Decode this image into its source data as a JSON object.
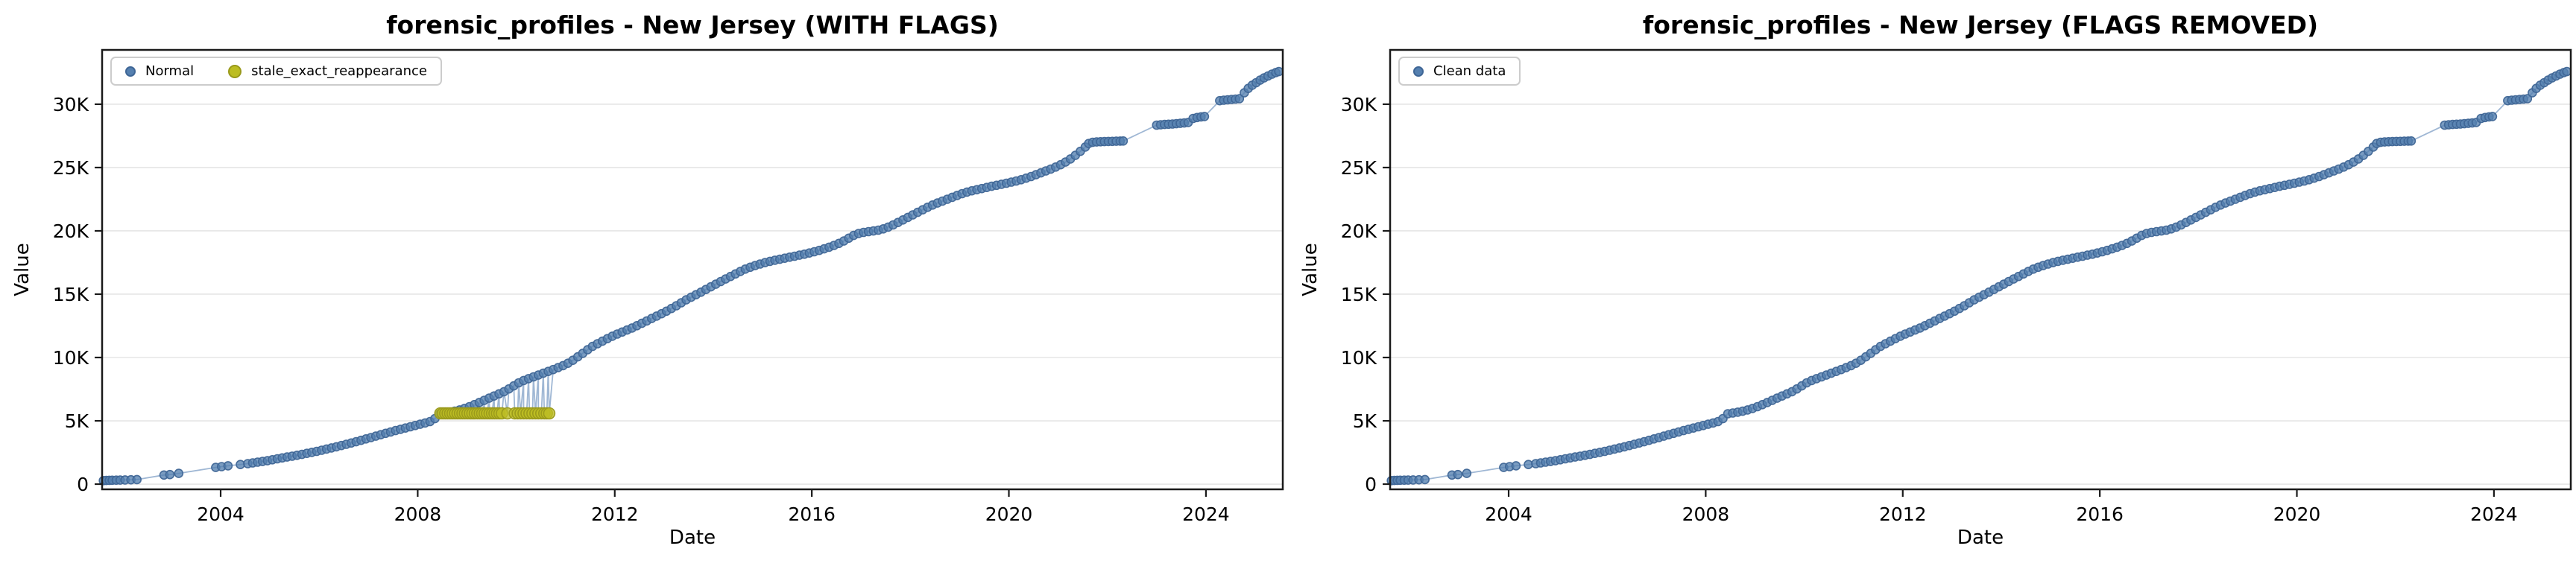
{
  "figure": {
    "background": "#ffffff"
  },
  "colors": {
    "normal_fill": "#5580b0",
    "normal_edge": "#3f6696",
    "stale_fill": "#bcbd22",
    "stale_edge": "#99991b",
    "line": "#7f9fc6",
    "grid": "#e5e5e5",
    "axis": "#1a1a1a",
    "text": "#000000"
  },
  "chart_data": [
    {
      "type": "scatter",
      "title": "forensic_profiles - New Jersey (WITH FLAGS)",
      "xlabel": "Date",
      "ylabel": "Value",
      "xlim": [
        2001.594,
        2025.56
      ],
      "ylim": [
        -410,
        34290
      ],
      "x_ticks": [
        {
          "value": 2004,
          "label": "2004"
        },
        {
          "value": 2008,
          "label": "2008"
        },
        {
          "value": 2012,
          "label": "2012"
        },
        {
          "value": 2016,
          "label": "2016"
        },
        {
          "value": 2020,
          "label": "2020"
        },
        {
          "value": 2024,
          "label": "2024"
        }
      ],
      "y_ticks": [
        {
          "value": 0,
          "label": "0"
        },
        {
          "value": 5000,
          "label": "5K"
        },
        {
          "value": 10000,
          "label": "10K"
        },
        {
          "value": 15000,
          "label": "15K"
        },
        {
          "value": 20000,
          "label": "20K"
        },
        {
          "value": 25000,
          "label": "25K"
        },
        {
          "value": 30000,
          "label": "30K"
        }
      ],
      "grid": "horizontal",
      "legend_position": "upper left",
      "legend": {
        "items": [
          {
            "series": "normal",
            "label": "Normal"
          },
          {
            "series": "stale",
            "label": "stale_exact_reappearance"
          }
        ]
      },
      "line_series": [
        "normal",
        "stale"
      ],
      "point_series": [
        {
          "series": "normal",
          "radius": 5.5
        },
        {
          "series": "stale",
          "radius": 7.5
        }
      ]
    },
    {
      "type": "scatter",
      "title": "forensic_profiles - New Jersey (FLAGS REMOVED)",
      "xlabel": "Date",
      "ylabel": "Value",
      "xlim": [
        2001.594,
        2025.56
      ],
      "ylim": [
        -410,
        34290
      ],
      "x_ticks": [
        {
          "value": 2004,
          "label": "2004"
        },
        {
          "value": 2008,
          "label": "2008"
        },
        {
          "value": 2012,
          "label": "2012"
        },
        {
          "value": 2016,
          "label": "2016"
        },
        {
          "value": 2020,
          "label": "2020"
        },
        {
          "value": 2024,
          "label": "2024"
        }
      ],
      "y_ticks": [
        {
          "value": 0,
          "label": "0"
        },
        {
          "value": 5000,
          "label": "5K"
        },
        {
          "value": 10000,
          "label": "10K"
        },
        {
          "value": 15000,
          "label": "15K"
        },
        {
          "value": 20000,
          "label": "20K"
        },
        {
          "value": 25000,
          "label": "25K"
        },
        {
          "value": 30000,
          "label": "30K"
        }
      ],
      "grid": "horizontal",
      "legend_position": "upper left",
      "legend": {
        "items": [
          {
            "series": "normal",
            "label": "Clean data"
          }
        ]
      },
      "line_series": [
        "normal"
      ],
      "point_series": [
        {
          "series": "normal",
          "radius": 5.5
        }
      ]
    }
  ],
  "series": {
    "normal": [
      [
        2001.62,
        280
      ],
      [
        2001.68,
        292
      ],
      [
        2001.74,
        300
      ],
      [
        2001.8,
        306
      ],
      [
        2001.88,
        312
      ],
      [
        2001.96,
        318
      ],
      [
        2002.06,
        330
      ],
      [
        2002.18,
        345
      ],
      [
        2002.3,
        360
      ],
      [
        2002.85,
        720
      ],
      [
        2002.97,
        755
      ],
      [
        2003.15,
        850
      ],
      [
        2003.9,
        1320
      ],
      [
        2004.02,
        1385
      ],
      [
        2004.15,
        1450
      ],
      [
        2004.4,
        1550
      ],
      [
        2004.55,
        1620
      ],
      [
        2004.65,
        1680
      ],
      [
        2004.75,
        1735
      ],
      [
        2004.85,
        1790
      ],
      [
        2004.95,
        1850
      ],
      [
        2005.05,
        1925
      ],
      [
        2005.15,
        2000
      ],
      [
        2005.25,
        2070
      ],
      [
        2005.35,
        2140
      ],
      [
        2005.45,
        2210
      ],
      [
        2005.55,
        2280
      ],
      [
        2005.65,
        2350
      ],
      [
        2005.75,
        2430
      ],
      [
        2005.85,
        2510
      ],
      [
        2005.95,
        2590
      ],
      [
        2006.05,
        2680
      ],
      [
        2006.15,
        2770
      ],
      [
        2006.25,
        2860
      ],
      [
        2006.35,
        2950
      ],
      [
        2006.45,
        3050
      ],
      [
        2006.55,
        3150
      ],
      [
        2006.65,
        3250
      ],
      [
        2006.75,
        3350
      ],
      [
        2006.85,
        3460
      ],
      [
        2006.95,
        3570
      ],
      [
        2007.05,
        3680
      ],
      [
        2007.15,
        3790
      ],
      [
        2007.25,
        3900
      ],
      [
        2007.35,
        4010
      ],
      [
        2007.45,
        4120
      ],
      [
        2007.55,
        4230
      ],
      [
        2007.65,
        4330
      ],
      [
        2007.75,
        4430
      ],
      [
        2007.85,
        4530
      ],
      [
        2007.95,
        4630
      ],
      [
        2008.05,
        4730
      ],
      [
        2008.15,
        4830
      ],
      [
        2008.25,
        4940
      ],
      [
        2008.35,
        5180
      ],
      [
        2008.45,
        5560
      ],
      [
        2008.55,
        5620
      ],
      [
        2008.65,
        5685
      ],
      [
        2008.75,
        5760
      ],
      [
        2008.85,
        5860
      ],
      [
        2008.95,
        5980
      ],
      [
        2009.05,
        6120
      ],
      [
        2009.15,
        6280
      ],
      [
        2009.25,
        6450
      ],
      [
        2009.35,
        6620
      ],
      [
        2009.45,
        6790
      ],
      [
        2009.55,
        6960
      ],
      [
        2009.65,
        7130
      ],
      [
        2009.75,
        7300
      ],
      [
        2009.85,
        7520
      ],
      [
        2009.95,
        7760
      ],
      [
        2010.05,
        8000
      ],
      [
        2010.15,
        8180
      ],
      [
        2010.25,
        8330
      ],
      [
        2010.35,
        8470
      ],
      [
        2010.45,
        8610
      ],
      [
        2010.55,
        8760
      ],
      [
        2010.65,
        8900
      ],
      [
        2010.75,
        9050
      ],
      [
        2010.85,
        9200
      ],
      [
        2010.95,
        9360
      ],
      [
        2011.05,
        9550
      ],
      [
        2011.15,
        9780
      ],
      [
        2011.25,
        10050
      ],
      [
        2011.35,
        10330
      ],
      [
        2011.45,
        10610
      ],
      [
        2011.55,
        10880
      ],
      [
        2011.65,
        11090
      ],
      [
        2011.75,
        11290
      ],
      [
        2011.85,
        11490
      ],
      [
        2011.95,
        11680
      ],
      [
        2012.05,
        11850
      ],
      [
        2012.15,
        12010
      ],
      [
        2012.25,
        12170
      ],
      [
        2012.35,
        12330
      ],
      [
        2012.45,
        12510
      ],
      [
        2012.55,
        12700
      ],
      [
        2012.65,
        12890
      ],
      [
        2012.75,
        13080
      ],
      [
        2012.85,
        13270
      ],
      [
        2012.95,
        13460
      ],
      [
        2013.05,
        13660
      ],
      [
        2013.15,
        13870
      ],
      [
        2013.25,
        14090
      ],
      [
        2013.35,
        14320
      ],
      [
        2013.45,
        14550
      ],
      [
        2013.55,
        14760
      ],
      [
        2013.65,
        14960
      ],
      [
        2013.75,
        15160
      ],
      [
        2013.85,
        15370
      ],
      [
        2013.95,
        15580
      ],
      [
        2014.05,
        15790
      ],
      [
        2014.15,
        16000
      ],
      [
        2014.25,
        16200
      ],
      [
        2014.35,
        16400
      ],
      [
        2014.45,
        16600
      ],
      [
        2014.55,
        16800
      ],
      [
        2014.65,
        16980
      ],
      [
        2014.75,
        17130
      ],
      [
        2014.85,
        17260
      ],
      [
        2014.95,
        17380
      ],
      [
        2015.05,
        17490
      ],
      [
        2015.15,
        17590
      ],
      [
        2015.25,
        17680
      ],
      [
        2015.35,
        17760
      ],
      [
        2015.45,
        17840
      ],
      [
        2015.55,
        17920
      ],
      [
        2015.65,
        18000
      ],
      [
        2015.75,
        18080
      ],
      [
        2015.85,
        18160
      ],
      [
        2015.95,
        18250
      ],
      [
        2016.05,
        18350
      ],
      [
        2016.15,
        18460
      ],
      [
        2016.25,
        18580
      ],
      [
        2016.35,
        18710
      ],
      [
        2016.45,
        18850
      ],
      [
        2016.55,
        19010
      ],
      [
        2016.65,
        19200
      ],
      [
        2016.75,
        19420
      ],
      [
        2016.85,
        19640
      ],
      [
        2016.95,
        19790
      ],
      [
        2017.05,
        19880
      ],
      [
        2017.15,
        19940
      ],
      [
        2017.25,
        19990
      ],
      [
        2017.35,
        20060
      ],
      [
        2017.45,
        20160
      ],
      [
        2017.55,
        20300
      ],
      [
        2017.65,
        20470
      ],
      [
        2017.75,
        20660
      ],
      [
        2017.85,
        20860
      ],
      [
        2017.95,
        21060
      ],
      [
        2018.05,
        21260
      ],
      [
        2018.15,
        21460
      ],
      [
        2018.25,
        21660
      ],
      [
        2018.35,
        21860
      ],
      [
        2018.45,
        22040
      ],
      [
        2018.55,
        22200
      ],
      [
        2018.65,
        22350
      ],
      [
        2018.75,
        22500
      ],
      [
        2018.85,
        22650
      ],
      [
        2018.95,
        22800
      ],
      [
        2019.05,
        22940
      ],
      [
        2019.15,
        23060
      ],
      [
        2019.25,
        23160
      ],
      [
        2019.35,
        23250
      ],
      [
        2019.45,
        23340
      ],
      [
        2019.55,
        23430
      ],
      [
        2019.65,
        23520
      ],
      [
        2019.75,
        23600
      ],
      [
        2019.85,
        23680
      ],
      [
        2019.95,
        23760
      ],
      [
        2020.05,
        23850
      ],
      [
        2020.15,
        23940
      ],
      [
        2020.25,
        24040
      ],
      [
        2020.35,
        24160
      ],
      [
        2020.45,
        24290
      ],
      [
        2020.55,
        24430
      ],
      [
        2020.65,
        24580
      ],
      [
        2020.75,
        24730
      ],
      [
        2020.85,
        24880
      ],
      [
        2020.95,
        25040
      ],
      [
        2021.05,
        25220
      ],
      [
        2021.15,
        25430
      ],
      [
        2021.25,
        25680
      ],
      [
        2021.35,
        25960
      ],
      [
        2021.45,
        26280
      ],
      [
        2021.55,
        26620
      ],
      [
        2021.62,
        26900
      ],
      [
        2021.7,
        26990
      ],
      [
        2021.78,
        27020
      ],
      [
        2021.86,
        27040
      ],
      [
        2021.94,
        27050
      ],
      [
        2022.02,
        27060
      ],
      [
        2022.1,
        27070
      ],
      [
        2022.18,
        27080
      ],
      [
        2022.26,
        27090
      ],
      [
        2022.32,
        27100
      ],
      [
        2023.0,
        28350
      ],
      [
        2023.08,
        28380
      ],
      [
        2023.16,
        28400
      ],
      [
        2023.24,
        28420
      ],
      [
        2023.32,
        28440
      ],
      [
        2023.4,
        28460
      ],
      [
        2023.48,
        28490
      ],
      [
        2023.56,
        28520
      ],
      [
        2023.64,
        28560
      ],
      [
        2023.74,
        28880
      ],
      [
        2023.82,
        28950
      ],
      [
        2023.9,
        29000
      ],
      [
        2023.97,
        29030
      ],
      [
        2024.28,
        30280
      ],
      [
        2024.36,
        30320
      ],
      [
        2024.44,
        30350
      ],
      [
        2024.52,
        30380
      ],
      [
        2024.6,
        30410
      ],
      [
        2024.68,
        30440
      ],
      [
        2024.78,
        30900
      ],
      [
        2024.86,
        31250
      ],
      [
        2024.94,
        31500
      ],
      [
        2025.02,
        31700
      ],
      [
        2025.1,
        31900
      ],
      [
        2025.18,
        32080
      ],
      [
        2025.26,
        32230
      ],
      [
        2025.34,
        32380
      ],
      [
        2025.42,
        32500
      ],
      [
        2025.48,
        32580
      ]
    ],
    "stale": {
      "value": 5590,
      "years": [
        2008.46,
        2008.51,
        2008.56,
        2008.61,
        2008.66,
        2008.71,
        2008.76,
        2008.81,
        2008.86,
        2008.91,
        2008.96,
        2009.01,
        2009.06,
        2009.11,
        2009.16,
        2009.21,
        2009.26,
        2009.31,
        2009.36,
        2009.41,
        2009.46,
        2009.51,
        2009.56,
        2009.61,
        2009.66,
        2009.71,
        2009.82,
        2009.97,
        2010.03,
        2010.09,
        2010.15,
        2010.21,
        2010.27,
        2010.33,
        2010.39,
        2010.45,
        2010.51,
        2010.57,
        2010.62,
        2010.67
      ]
    }
  }
}
